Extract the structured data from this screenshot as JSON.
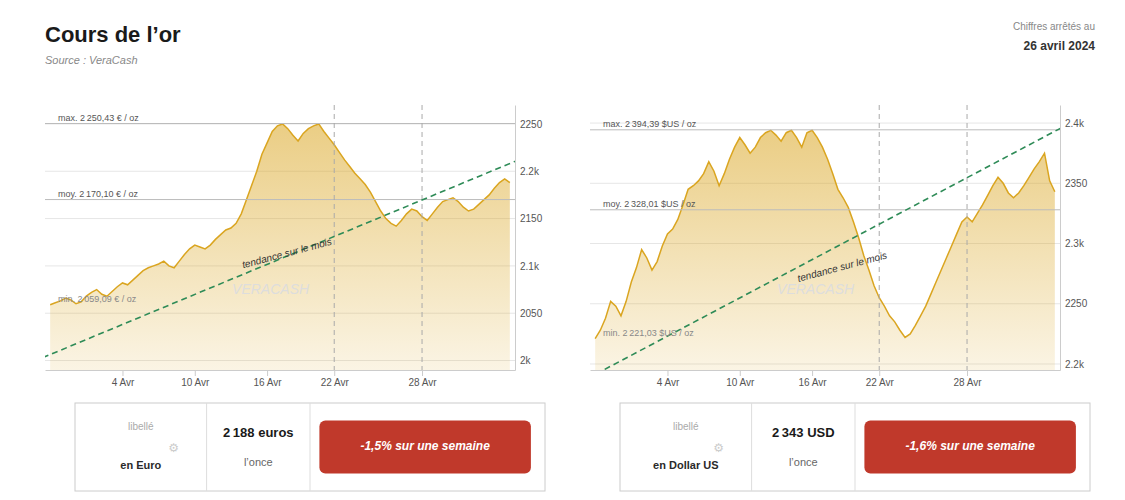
{
  "title": "Cours de l’or",
  "source": "Source : VeraCash",
  "date_label": "Chiffres arrêtés au",
  "date": "26 avril 2024",
  "chart_data": [
    {
      "type": "area",
      "categories": [
        null,
        null,
        null,
        null,
        null,
        null,
        null,
        null,
        null,
        null,
        null,
        null,
        null,
        null,
        "4 Avr",
        null,
        null,
        null,
        null,
        null,
        null,
        null,
        null,
        null,
        null,
        null,
        null,
        null,
        "10 Avr",
        null,
        null,
        null,
        null,
        null,
        null,
        null,
        null,
        null,
        null,
        null,
        null,
        null,
        "16 Avr",
        null,
        null,
        null,
        null,
        null,
        null,
        null,
        null,
        null,
        null,
        null,
        null,
        "22 Avr",
        null,
        null,
        null,
        null,
        null,
        null,
        null,
        null,
        null,
        null,
        null,
        null,
        null,
        null,
        null,
        null,
        "28 Avr",
        null,
        null,
        null,
        null,
        null,
        null,
        null,
        null,
        null,
        null,
        null,
        null,
        null,
        null,
        null,
        null,
        null
      ],
      "values": [
        2059,
        2061,
        2063,
        2066,
        2064,
        2060,
        2062,
        2068,
        2072,
        2075,
        2070,
        2068,
        2073,
        2078,
        2082,
        2080,
        2085,
        2090,
        2095,
        2098,
        2100,
        2102,
        2105,
        2100,
        2098,
        2105,
        2112,
        2118,
        2122,
        2120,
        2118,
        2122,
        2128,
        2133,
        2138,
        2140,
        2145,
        2155,
        2170,
        2185,
        2200,
        2218,
        2230,
        2242,
        2248,
        2250,
        2245,
        2238,
        2232,
        2240,
        2245,
        2248,
        2250,
        2242,
        2235,
        2228,
        2220,
        2212,
        2205,
        2198,
        2192,
        2186,
        2178,
        2168,
        2158,
        2150,
        2145,
        2142,
        2148,
        2155,
        2160,
        2158,
        2152,
        2148,
        2155,
        2162,
        2168,
        2170,
        2172,
        2168,
        2162,
        2158,
        2160,
        2165,
        2170,
        2175,
        2182,
        2188,
        2192,
        2188
      ],
      "color": "#DAA520",
      "ylim": [
        1990,
        2270
      ],
      "yticks": [
        {
          "value": 2000,
          "label": "2k"
        },
        2050,
        {
          "value": 2100,
          "label": "2.1k"
        },
        2150,
        {
          "value": 2200,
          "label": "2.2k"
        },
        2250
      ],
      "grid": true,
      "min_val": 2059.09,
      "min_label": "min. 2 059,09 € / oz",
      "max_val": 2250.43,
      "max_label": "max. 2 250,43 € / oz",
      "mean_val": 2170.1,
      "mean_label": "moy. 2 170,10 € / oz",
      "trend": {
        "x": [
          -5,
          92
        ],
        "y": [
          1995,
          2215
        ],
        "color": "#2E8B57",
        "label": "tendance sur le mois",
        "label_x": 46,
        "label_y": 2110
      },
      "vlines": [
        55,
        72
      ],
      "watermark": "VERACASH",
      "summary": {
        "label1": "libellé",
        "icon": "⚙",
        "label2": "en Euro",
        "value": "2 188 euros",
        "unit": "l’once",
        "change": "-1,5% sur une semaine",
        "change_color": "#C0392B"
      }
    },
    {
      "type": "area",
      "categories": [
        null,
        null,
        null,
        null,
        null,
        null,
        null,
        null,
        null,
        null,
        null,
        null,
        null,
        null,
        "4 Avr",
        null,
        null,
        null,
        null,
        null,
        null,
        null,
        null,
        null,
        null,
        null,
        null,
        null,
        "10 Avr",
        null,
        null,
        null,
        null,
        null,
        null,
        null,
        null,
        null,
        null,
        null,
        null,
        null,
        "16 Avr",
        null,
        null,
        null,
        null,
        null,
        null,
        null,
        null,
        null,
        null,
        null,
        null,
        "22 Avr",
        null,
        null,
        null,
        null,
        null,
        null,
        null,
        null,
        null,
        null,
        null,
        null,
        null,
        null,
        null,
        null,
        "28 Avr",
        null,
        null,
        null,
        null,
        null,
        null,
        null,
        null,
        null,
        null,
        null,
        null,
        null,
        null,
        null,
        null,
        null
      ],
      "values": [
        2221,
        2228,
        2238,
        2252,
        2248,
        2240,
        2252,
        2268,
        2280,
        2295,
        2288,
        2278,
        2285,
        2298,
        2308,
        2312,
        2320,
        2332,
        2345,
        2348,
        2352,
        2358,
        2368,
        2360,
        2348,
        2358,
        2370,
        2380,
        2388,
        2382,
        2375,
        2380,
        2388,
        2392,
        2394,
        2390,
        2385,
        2392,
        2394,
        2388,
        2380,
        2392,
        2394,
        2388,
        2380,
        2370,
        2358,
        2345,
        2338,
        2330,
        2318,
        2305,
        2290,
        2278,
        2265,
        2255,
        2248,
        2240,
        2235,
        2228,
        2222,
        2225,
        2232,
        2240,
        2248,
        2258,
        2268,
        2278,
        2288,
        2298,
        2308,
        2318,
        2322,
        2318,
        2325,
        2332,
        2340,
        2348,
        2355,
        2350,
        2342,
        2338,
        2342,
        2348,
        2355,
        2362,
        2368,
        2375,
        2352,
        2343
      ],
      "color": "#DAA520",
      "ylim": [
        2195,
        2415
      ],
      "yticks": [
        {
          "value": 2200,
          "label": "2.2k"
        },
        2250,
        {
          "value": 2300,
          "label": "2.3k"
        },
        2350,
        {
          "value": 2400,
          "label": "2.4k"
        }
      ],
      "grid": true,
      "min_val": 2221.03,
      "min_label": "min. 2 221,03 $US / oz",
      "max_val": 2394.39,
      "max_label": "max. 2 394,39 $US / oz",
      "mean_val": 2328.01,
      "mean_label": "moy. 2 328,01 $US / oz",
      "trend": {
        "x": [
          -5,
          92
        ],
        "y": [
          2180,
          2400
        ],
        "color": "#2E8B57",
        "label": "tendance sur le mois",
        "label_x": 48,
        "label_y": 2278
      },
      "vlines": [
        55,
        72
      ],
      "watermark": "VERACASH",
      "summary": {
        "label1": "libellé",
        "icon": "⚙",
        "label2": "en Dollar US",
        "value": "2 343 USD",
        "unit": "l’once",
        "change": "-1,6% sur une semaine",
        "change_color": "#C0392B"
      }
    }
  ]
}
